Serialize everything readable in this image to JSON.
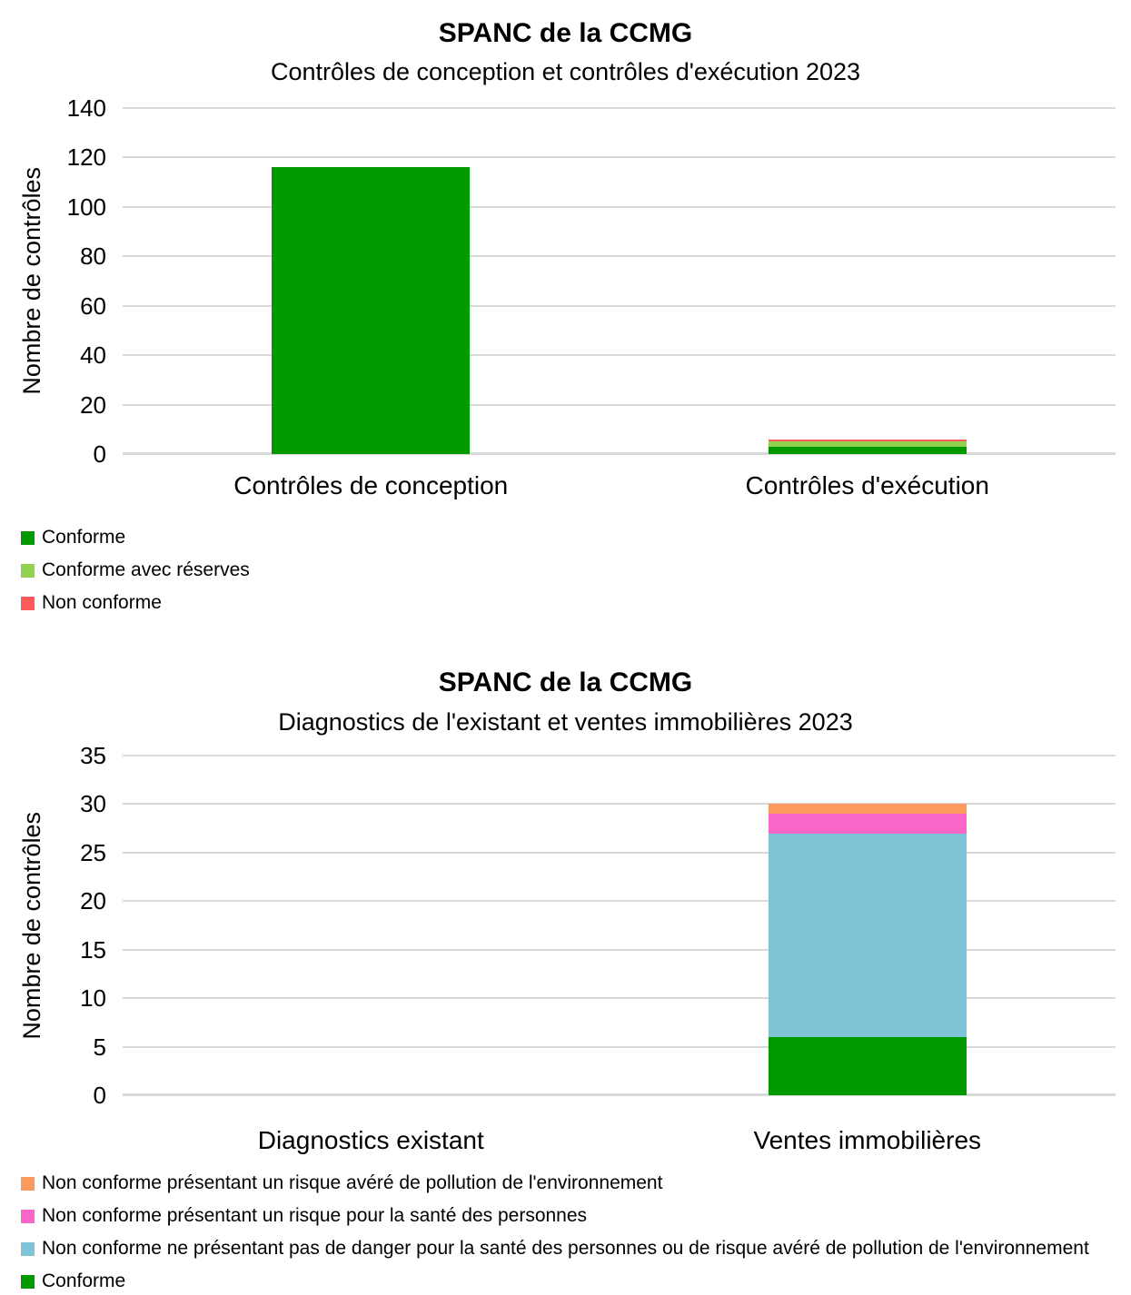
{
  "chart_data": [
    {
      "type": "bar",
      "stacked": true,
      "title": "SPANC de la CCMG",
      "subtitle": "Contrôles de conception et contrôles d'exécution 2023",
      "ylabel": "Nombre de contrôles",
      "xlabel": "",
      "ylim": [
        0,
        140
      ],
      "ytick_step": 20,
      "grid": true,
      "legend_position": "bottom-left",
      "categories": [
        "Contrôles de conception",
        "Contrôles d'exécution"
      ],
      "series": [
        {
          "name": "Conforme",
          "color": "#009900",
          "values": [
            116,
            3
          ]
        },
        {
          "name": "Conforme avec réserves",
          "color": "#92D050",
          "values": [
            0,
            2
          ]
        },
        {
          "name": "Non conforme",
          "color": "#FF5A5A",
          "values": [
            0,
            1
          ]
        }
      ],
      "legend": [
        "Conforme",
        "Conforme avec réserves",
        "Non conforme"
      ]
    },
    {
      "type": "bar",
      "stacked": true,
      "title": "SPANC de la CCMG",
      "subtitle": "Diagnostics de l'existant et ventes immobilières 2023",
      "ylabel": "Nombre de contrôles",
      "xlabel": "",
      "ylim": [
        0,
        35
      ],
      "ytick_step": 5,
      "grid": true,
      "legend_position": "bottom-left",
      "categories": [
        "Diagnostics existant",
        "Ventes immobilières"
      ],
      "series": [
        {
          "name": "Conforme",
          "color": "#009900",
          "values": [
            0,
            6
          ]
        },
        {
          "name": "Non conforme ne présentant pas de danger pour la santé des personnes ou de risque avéré de pollution de l'environnement",
          "color": "#7FC4D6",
          "values": [
            0,
            21
          ]
        },
        {
          "name": "Non conforme présentant un risque pour la santé des personnes",
          "color": "#F966C7",
          "values": [
            0,
            2
          ]
        },
        {
          "name": "Non conforme présentant un risque avéré de pollution de l'environnement",
          "color": "#FC9A5C",
          "values": [
            0,
            1
          ]
        }
      ],
      "legend": [
        "Non conforme présentant un risque avéré de pollution de l'environnement",
        "Non conforme présentant un risque pour la santé des personnes",
        "Non conforme ne présentant pas de danger pour la santé des personnes ou de risque avéré de pollution de l'environnement",
        "Conforme"
      ]
    }
  ],
  "colors": {
    "gridline": "#d9d9d9",
    "conforme": "#009900",
    "conforme_avec_reserves": "#92D050",
    "non_conforme": "#FF5A5A",
    "non_conforme_pollution": "#FC9A5C",
    "non_conforme_sante": "#F966C7",
    "non_conforme_sans_danger": "#7FC4D6"
  }
}
